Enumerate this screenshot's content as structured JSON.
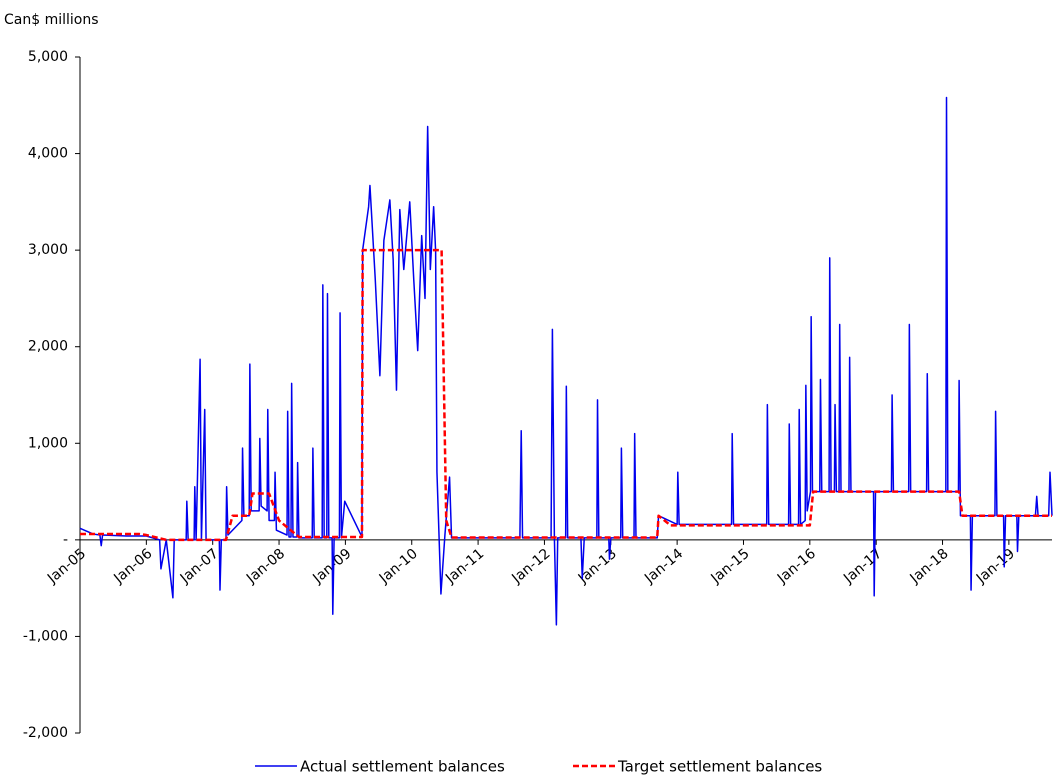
{
  "chart_data": {
    "type": "line",
    "y_label": "Can$ millions",
    "xlim": [
      2005,
      2019.65
    ],
    "xticks": [
      {
        "value": 2005,
        "label": "Jan-05"
      },
      {
        "value": 2006,
        "label": "Jan-06"
      },
      {
        "value": 2007,
        "label": "Jan-07"
      },
      {
        "value": 2008,
        "label": "Jan-08"
      },
      {
        "value": 2009,
        "label": "Jan-09"
      },
      {
        "value": 2010,
        "label": "Jan-10"
      },
      {
        "value": 2011,
        "label": "Jan-11"
      },
      {
        "value": 2012,
        "label": "Jan-12"
      },
      {
        "value": 2013,
        "label": "Jan-13"
      },
      {
        "value": 2014,
        "label": "Jan-14"
      },
      {
        "value": 2015,
        "label": "Jan-15"
      },
      {
        "value": 2016,
        "label": "Jan-16"
      },
      {
        "value": 2017,
        "label": "Jan-17"
      },
      {
        "value": 2018,
        "label": "Jan-18"
      },
      {
        "value": 2019,
        "label": "Jan-19"
      }
    ],
    "ylim": [
      -2000,
      5000
    ],
    "yticks": [
      {
        "value": -2000,
        "label": "-2,000"
      },
      {
        "value": -1000,
        "label": "-1,000"
      },
      {
        "value": 0,
        "label": "-"
      },
      {
        "value": 1000,
        "label": "1,000"
      },
      {
        "value": 2000,
        "label": "2,000"
      },
      {
        "value": 3000,
        "label": "3,000"
      },
      {
        "value": 4000,
        "label": "4,000"
      },
      {
        "value": 5000,
        "label": "5,000"
      }
    ],
    "legend": "bottom",
    "series": [
      {
        "name": "Actual settlement balances",
        "color": "#0000ee",
        "dash": false,
        "x": [
          2005.0,
          2005.2,
          2005.3,
          2005.32,
          2005.34,
          2005.7,
          2006.0,
          2006.2,
          2006.22,
          2006.3,
          2006.4,
          2006.42,
          2006.6,
          2006.61,
          2006.63,
          2006.72,
          2006.73,
          2006.75,
          2006.81,
          2006.83,
          2006.88,
          2006.9,
          2007.1,
          2007.11,
          2007.13,
          2007.2,
          2007.21,
          2007.23,
          2007.44,
          2007.45,
          2007.47,
          2007.55,
          2007.56,
          2007.58,
          2007.7,
          2007.71,
          2007.73,
          2007.82,
          2007.83,
          2007.85,
          2007.93,
          2007.94,
          2007.96,
          2008.12,
          2008.13,
          2008.15,
          2008.18,
          2008.19,
          2008.21,
          2008.27,
          2008.28,
          2008.3,
          2008.5,
          2008.51,
          2008.53,
          2008.65,
          2008.66,
          2008.68,
          2008.72,
          2008.73,
          2008.75,
          2008.8,
          2008.81,
          2008.83,
          2008.91,
          2008.92,
          2008.94,
          2008.99,
          2009.25,
          2009.26,
          2009.35,
          2009.37,
          2009.45,
          2009.52,
          2009.58,
          2009.67,
          2009.72,
          2009.77,
          2009.82,
          2009.88,
          2009.97,
          2010.03,
          2010.09,
          2010.15,
          2010.2,
          2010.24,
          2010.28,
          2010.33,
          2010.36,
          2010.38,
          2010.44,
          2010.5,
          2010.57,
          2010.6,
          2011.63,
          2011.65,
          2011.67,
          2012.1,
          2012.12,
          2012.15,
          2012.18,
          2012.2,
          2012.32,
          2012.33,
          2012.35,
          2012.55,
          2012.57,
          2012.6,
          2012.79,
          2012.8,
          2012.82,
          2012.97,
          2012.98,
          2013.0,
          2013.15,
          2013.16,
          2013.18,
          2013.35,
          2013.36,
          2013.38,
          2013.7,
          2013.72,
          2014.0,
          2014.01,
          2014.03,
          2014.82,
          2014.83,
          2014.85,
          2015.35,
          2015.36,
          2015.38,
          2015.68,
          2015.69,
          2015.71,
          2015.83,
          2015.84,
          2015.86,
          2015.93,
          2015.94,
          2015.96,
          2016.01,
          2016.02,
          2016.04,
          2016.15,
          2016.16,
          2016.18,
          2016.29,
          2016.3,
          2016.32,
          2016.37,
          2016.38,
          2016.4,
          2016.44,
          2016.45,
          2016.47,
          2016.59,
          2016.6,
          2016.62,
          2016.96,
          2016.97,
          2016.99,
          2017.23,
          2017.24,
          2017.26,
          2017.49,
          2017.5,
          2017.52,
          2017.76,
          2017.77,
          2017.79,
          2018.05,
          2018.06,
          2018.08,
          2018.24,
          2018.25,
          2018.27,
          2018.42,
          2018.43,
          2018.45,
          2018.79,
          2018.8,
          2018.82,
          2018.92,
          2018.93,
          2018.95,
          2019.12,
          2019.13,
          2019.15,
          2019.4,
          2019.42,
          2019.44,
          2019.6,
          2019.62,
          2019.65
        ],
        "values": [
          120,
          60,
          50,
          -60,
          50,
          40,
          40,
          0,
          -300,
          0,
          -600,
          0,
          0,
          400,
          0,
          0,
          550,
          0,
          1870,
          0,
          1350,
          0,
          0,
          -520,
          0,
          0,
          550,
          50,
          200,
          950,
          250,
          250,
          1820,
          300,
          300,
          1050,
          350,
          300,
          1350,
          200,
          200,
          700,
          100,
          50,
          1330,
          30,
          30,
          1620,
          30,
          30,
          800,
          20,
          20,
          950,
          20,
          20,
          2640,
          20,
          20,
          2550,
          20,
          20,
          -770,
          20,
          20,
          2350,
          20,
          400,
          30,
          3000,
          3450,
          3670,
          2700,
          1700,
          3100,
          3520,
          2900,
          1550,
          3420,
          2800,
          3500,
          2700,
          1960,
          3150,
          2500,
          4280,
          2800,
          3450,
          2990,
          700,
          -560,
          50,
          650,
          20,
          20,
          1130,
          20,
          20,
          2180,
          20,
          -880,
          20,
          20,
          1590,
          20,
          20,
          -400,
          20,
          20,
          1450,
          20,
          20,
          -200,
          20,
          20,
          950,
          20,
          20,
          1100,
          20,
          20,
          250,
          160,
          700,
          160,
          160,
          1100,
          160,
          160,
          1400,
          160,
          160,
          1200,
          160,
          160,
          1350,
          160,
          200,
          1600,
          300,
          500,
          2310,
          500,
          500,
          1660,
          500,
          500,
          2920,
          500,
          500,
          1400,
          500,
          500,
          2230,
          500,
          500,
          1890,
          500,
          500,
          -580,
          500,
          500,
          1500,
          500,
          500,
          2230,
          500,
          500,
          1720,
          500,
          500,
          4580,
          500,
          500,
          1650,
          250,
          250,
          -520,
          250,
          250,
          1330,
          250,
          250,
          -280,
          250,
          250,
          -120,
          250,
          250,
          450,
          250,
          250,
          700,
          250
        ]
      },
      {
        "name": "Target settlement balances",
        "color": "#ff0000",
        "dash": true,
        "x": [
          2005.0,
          2005.9,
          2006.0,
          2006.3,
          2007.2,
          2007.3,
          2007.55,
          2007.6,
          2007.85,
          2008.0,
          2008.3,
          2009.25,
          2009.26,
          2010.45,
          2010.52,
          2010.6,
          2013.7,
          2013.72,
          2013.9,
          2016.0,
          2016.05,
          2018.25,
          2018.3,
          2019.65
        ],
        "values": [
          60,
          60,
          50,
          0,
          0,
          250,
          250,
          480,
          480,
          200,
          30,
          30,
          3000,
          3000,
          200,
          25,
          25,
          250,
          150,
          150,
          500,
          500,
          250,
          250
        ]
      }
    ]
  }
}
